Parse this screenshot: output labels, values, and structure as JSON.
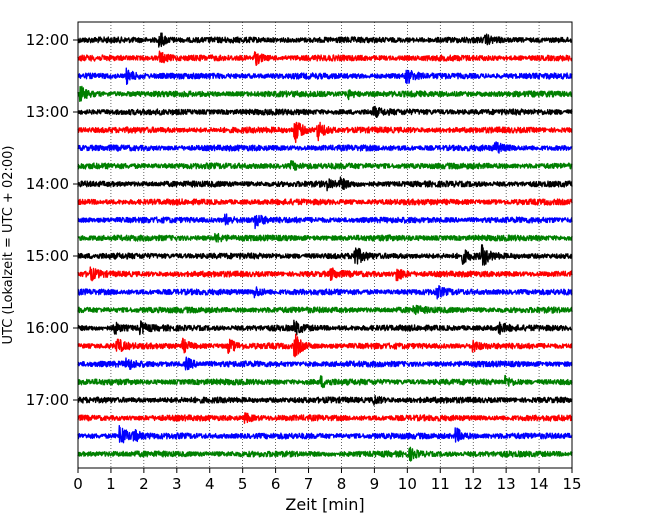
{
  "chart_data": {
    "type": "line",
    "subtype": "helicorder",
    "title": "",
    "xlabel": "Zeit  [min]",
    "ylabel": "UTC (Lokalzeit = UTC + 02:00)",
    "xlim": [
      0,
      15
    ],
    "xticks": [
      "0",
      "1",
      "2",
      "3",
      "4",
      "5",
      "6",
      "7",
      "8",
      "9",
      "10",
      "11",
      "12",
      "13",
      "14",
      "15"
    ],
    "yticks": [
      "12:00",
      "13:00",
      "14:00",
      "15:00",
      "16:00",
      "17:00"
    ],
    "grid": "vertical dotted",
    "trace_minutes": 15,
    "colors": [
      "#000000",
      "#ff0000",
      "#0000ff",
      "#008000"
    ],
    "traces": [
      "12:00",
      "12:15",
      "12:30",
      "12:45",
      "13:00",
      "13:15",
      "13:30",
      "13:45",
      "14:00",
      "14:15",
      "14:30",
      "14:45",
      "15:00",
      "15:15",
      "15:30",
      "15:45",
      "16:00",
      "16:15",
      "16:30",
      "16:45",
      "17:00",
      "17:15",
      "17:30",
      "17:45"
    ],
    "events": [
      [
        0,
        2.5,
        3
      ],
      [
        0,
        12.4,
        1.5
      ],
      [
        1,
        2.5,
        2.5
      ],
      [
        1,
        5.4,
        2.5
      ],
      [
        2,
        1.5,
        3
      ],
      [
        2,
        10.0,
        3
      ],
      [
        3,
        0.1,
        2.5
      ],
      [
        3,
        8.2,
        1.8
      ],
      [
        4,
        9.0,
        1.8
      ],
      [
        5,
        6.6,
        5
      ],
      [
        5,
        7.3,
        4
      ],
      [
        6,
        12.7,
        2
      ],
      [
        7,
        6.5,
        1.5
      ],
      [
        8,
        7.6,
        2
      ],
      [
        8,
        8.0,
        1.8
      ],
      [
        10,
        4.5,
        2
      ],
      [
        10,
        5.4,
        2.8
      ],
      [
        11,
        4.2,
        1.6
      ],
      [
        12,
        8.4,
        5
      ],
      [
        12,
        11.7,
        2.5
      ],
      [
        12,
        12.3,
        4
      ],
      [
        13,
        0.4,
        2.2
      ],
      [
        13,
        7.7,
        2
      ],
      [
        13,
        9.7,
        3
      ],
      [
        14,
        5.4,
        2
      ],
      [
        14,
        10.9,
        2.2
      ],
      [
        15,
        10.2,
        1.6
      ],
      [
        16,
        1.1,
        2.5
      ],
      [
        16,
        1.9,
        2.2
      ],
      [
        16,
        6.6,
        2.5
      ],
      [
        16,
        12.8,
        2.2
      ],
      [
        17,
        1.2,
        3
      ],
      [
        17,
        3.2,
        2.5
      ],
      [
        17,
        4.6,
        2.5
      ],
      [
        17,
        6.6,
        4.5
      ],
      [
        17,
        12.0,
        2
      ],
      [
        18,
        1.5,
        2.2
      ],
      [
        18,
        3.3,
        2.5
      ],
      [
        19,
        7.4,
        2
      ],
      [
        19,
        13.0,
        2
      ],
      [
        20,
        9.0,
        1.6
      ],
      [
        21,
        5.1,
        1.6
      ],
      [
        22,
        1.3,
        4.5
      ],
      [
        22,
        1.7,
        2
      ],
      [
        22,
        11.5,
        3
      ],
      [
        23,
        10.1,
        2
      ]
    ]
  }
}
